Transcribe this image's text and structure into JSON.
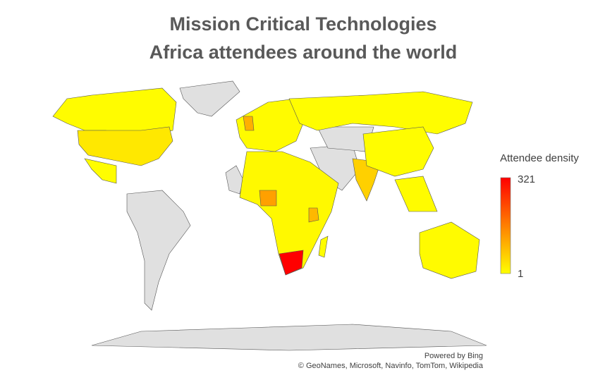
{
  "chart_data": {
    "type": "choropleth",
    "title": "Mission Critical Technologies Africa attendees around the world",
    "legend": {
      "title": "Attendee density",
      "max": 321,
      "min": 1,
      "colors": [
        "#ffff00",
        "#ff0000"
      ]
    },
    "no_data_color": "#e0e0e0",
    "regions": [
      {
        "value": 5
      },
      {
        "value": 30
      },
      {
        "value": 4
      },
      {
        "value": 6
      },
      {
        "value": 3
      },
      {
        "value": 8
      },
      {
        "value": 100
      },
      {
        "value": 120
      },
      {
        "value": 90
      },
      {
        "value": 321
      },
      {
        "value": 60
      },
      {
        "value": 4
      },
      {
        "value": 5
      },
      {
        "value": 6
      },
      {
        "value": 3
      }
    ],
    "footer": [
      "Powered by Bing",
      "© GeoNames, Microsoft, Navinfo, TomTom, Wikipedia"
    ]
  }
}
